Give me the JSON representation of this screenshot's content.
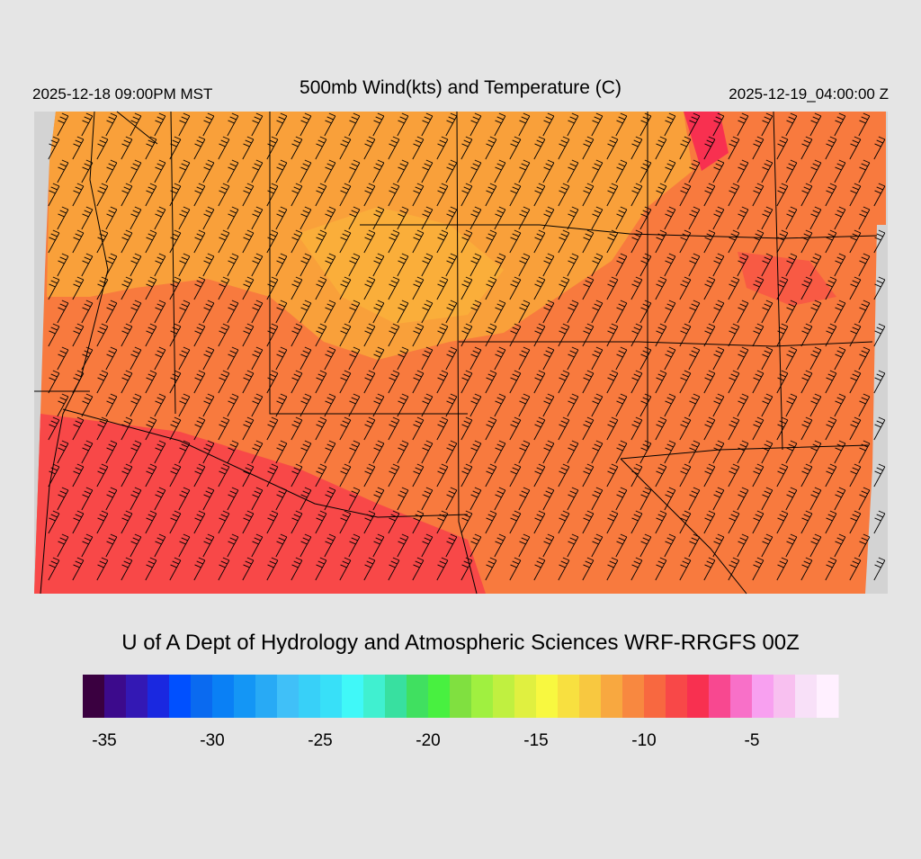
{
  "header": {
    "left": "2025-12-18 09:00PM MST",
    "title": "500mb Wind(kts) and Temperature (C)",
    "right": "2025-12-19_04:00:00 Z"
  },
  "footer": {
    "credit": "U of A Dept of Hydrology and Atmospheric Sciences WRF-RRGFS 00Z"
  },
  "colorbar": {
    "lim": [
      -36,
      -1
    ],
    "ticks": [
      -35,
      -30,
      -25,
      -20,
      -15,
      -10,
      -5
    ],
    "colors": [
      "#3a0040",
      "#3c0a8c",
      "#3318b4",
      "#1a28e0",
      "#0050ff",
      "#0a6af0",
      "#0a80f5",
      "#1496f5",
      "#28aaf5",
      "#40c0f8",
      "#38d0f8",
      "#38e0f8",
      "#40f8f8",
      "#40f0d0",
      "#38e0a0",
      "#40e060",
      "#48f040",
      "#80e040",
      "#a0f040",
      "#c0f040",
      "#e0f040",
      "#f8f840",
      "#f8e040",
      "#f8c840",
      "#f8a840",
      "#f88840",
      "#f86840",
      "#f84848",
      "#f83050",
      "#f84890",
      "#f870c8",
      "#f8a0f0",
      "#f8c0f0",
      "#f8e0f8",
      "#fff0ff"
    ]
  }
}
